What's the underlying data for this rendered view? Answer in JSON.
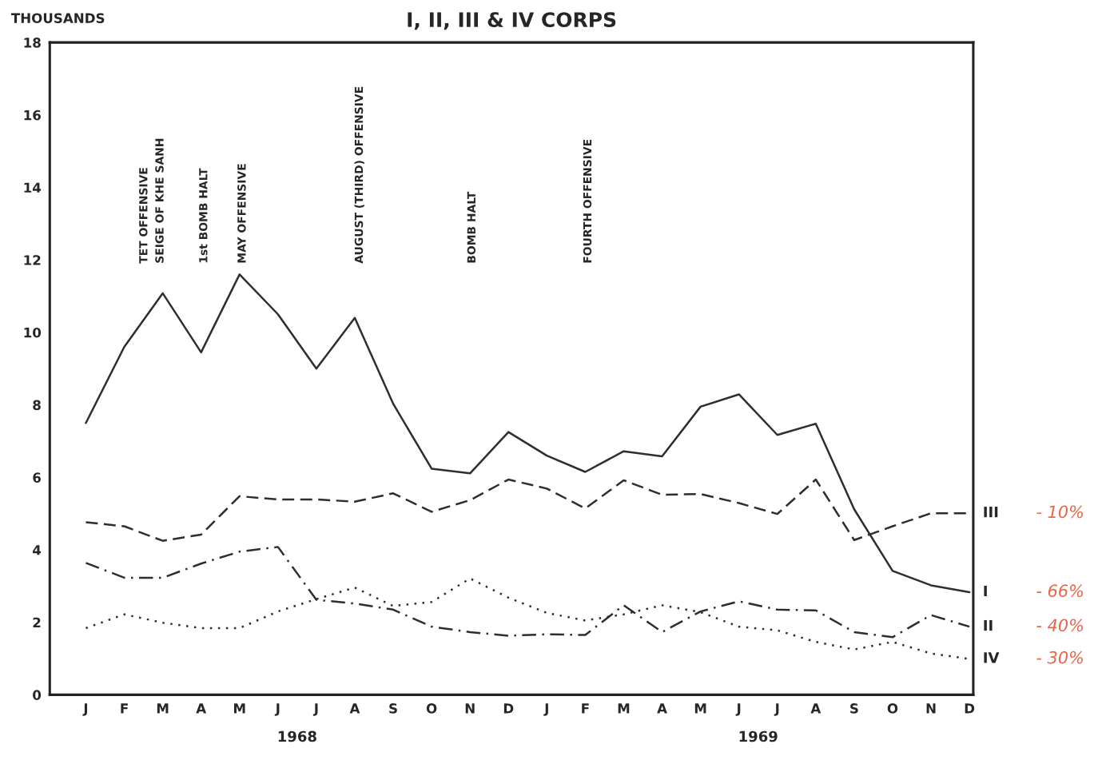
{
  "chart_data": {
    "type": "line",
    "title": "I, II, III & IV CORPS",
    "ylabel": "THOUSANDS",
    "categories": [
      "J",
      "F",
      "M",
      "A",
      "M",
      "J",
      "J",
      "A",
      "S",
      "O",
      "N",
      "D",
      "J",
      "F",
      "M",
      "A",
      "M",
      "J",
      "J",
      "A",
      "S",
      "O",
      "N",
      "D"
    ],
    "series": [
      {
        "name": "III",
        "color": "#2b302b",
        "line_style": "dashed",
        "values": [
          4.76,
          4.65,
          4.25,
          4.42,
          5.48,
          5.39,
          5.39,
          5.33,
          5.56,
          5.05,
          5.37,
          5.94,
          5.69,
          5.14,
          5.92,
          5.52,
          5.54,
          5.29,
          4.99,
          5.94,
          4.27,
          4.65,
          5.01,
          5.01
        ]
      },
      {
        "name": "I",
        "color": "#2b302b",
        "line_style": "solid",
        "values": [
          7.5,
          9.6,
          11.08,
          9.45,
          11.6,
          10.5,
          9.0,
          10.4,
          8.03,
          6.24,
          6.11,
          7.25,
          6.6,
          6.15,
          6.72,
          6.58,
          7.95,
          8.29,
          7.17,
          7.48,
          5.12,
          3.42,
          3.02,
          2.83
        ]
      },
      {
        "name": "II",
        "color": "#2b302b",
        "line_style": "dashdot",
        "values": [
          3.64,
          3.23,
          3.23,
          3.62,
          3.95,
          4.08,
          2.62,
          2.52,
          2.35,
          1.88,
          1.73,
          1.63,
          1.67,
          1.65,
          2.47,
          1.73,
          2.3,
          2.58,
          2.35,
          2.33,
          1.73,
          1.59,
          2.2,
          1.88
        ]
      },
      {
        "name": "IV",
        "color": "#2b302b",
        "line_style": "dotted",
        "values": [
          1.84,
          2.22,
          1.99,
          1.84,
          1.84,
          2.3,
          2.64,
          2.96,
          2.45,
          2.56,
          3.21,
          2.68,
          2.26,
          2.05,
          2.22,
          2.47,
          2.28,
          1.88,
          1.78,
          1.46,
          1.25,
          1.46,
          1.14,
          0.99
        ]
      }
    ],
    "ylim": [
      0,
      18
    ],
    "yticks": [
      0,
      2,
      4,
      6,
      8,
      10,
      12,
      14,
      16,
      18
    ],
    "grid": false,
    "legend": false,
    "annotations": [
      "TET OFFENSIVE",
      "SEIGE OF KHE SANH",
      "1st BOMB HALT",
      "MAY OFFENSIVE",
      "AUGUST (THIRD) OFFENSIVE",
      "BOMB HALT",
      "FOURTH OFFENSIVE",
      "1968",
      "1969",
      "- 10%",
      "- 66%",
      "- 40%",
      "- 30%"
    ]
  }
}
